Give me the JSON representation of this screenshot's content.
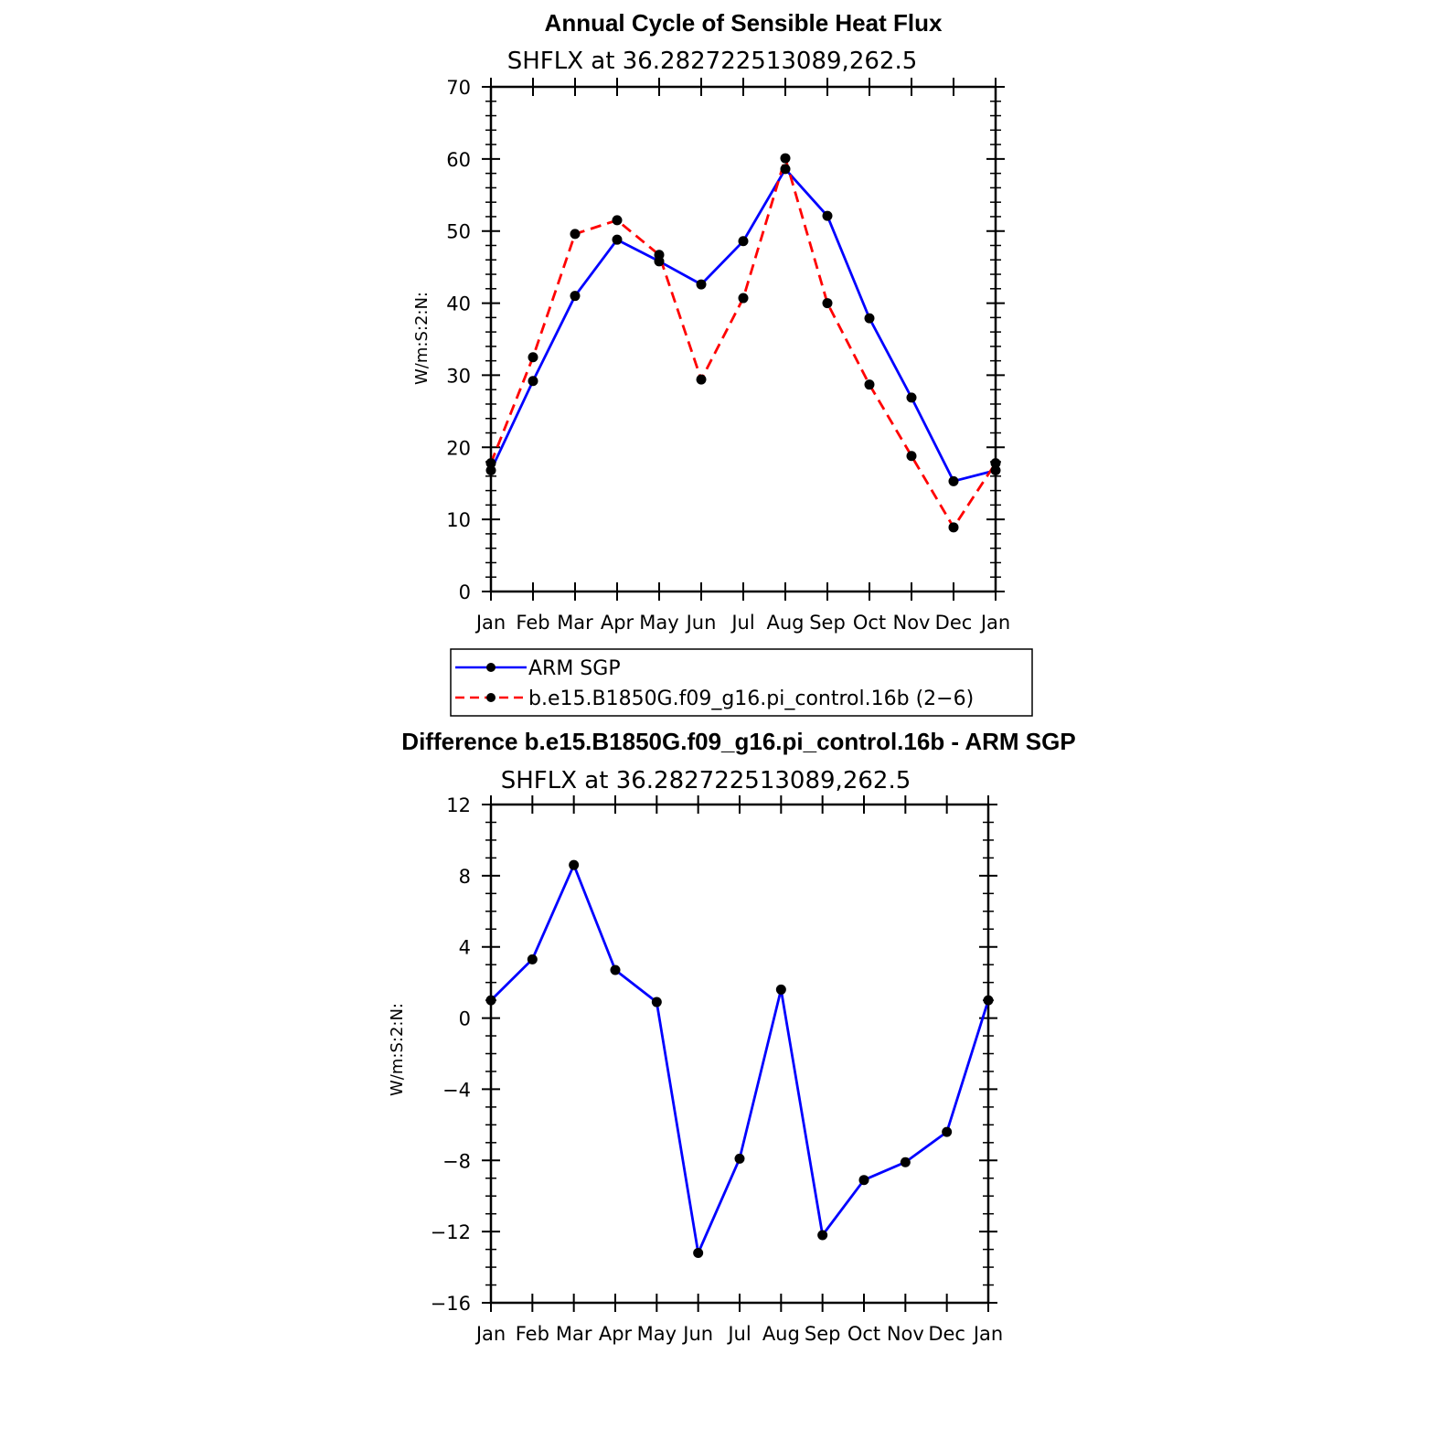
{
  "chart_data": [
    {
      "type": "line",
      "title": "Annual Cycle of Sensible Heat Flux",
      "subtitle": "SHFLX at 36.282722513089,262.5",
      "xlabel": "",
      "ylabel": "W/m:S:2:N:",
      "categories": [
        "Jan",
        "Feb",
        "Mar",
        "Apr",
        "May",
        "Jun",
        "Jul",
        "Aug",
        "Sep",
        "Oct",
        "Nov",
        "Dec",
        "Jan"
      ],
      "ylim": [
        0,
        70
      ],
      "yticks": [
        0,
        10,
        20,
        30,
        40,
        50,
        60,
        70
      ],
      "series": [
        {
          "name": "ARM SGP",
          "color": "#0000ff",
          "style": "solid",
          "values": [
            16.8,
            29.2,
            41.0,
            48.8,
            45.8,
            42.6,
            48.6,
            58.6,
            52.1,
            37.9,
            26.9,
            15.3,
            16.8
          ]
        },
        {
          "name": "b.e15.B1850G.f09_g16.pi_control.16b (2-6)",
          "color": "#ff0000",
          "style": "dashed",
          "values": [
            17.8,
            32.5,
            49.6,
            51.5,
            46.7,
            29.4,
            40.7,
            60.1,
            40.0,
            28.7,
            18.8,
            8.9,
            17.8
          ]
        }
      ],
      "legend": {
        "position": "below",
        "entries": [
          "ARM SGP",
          "b.e15.B1850G.f09_g16.pi_control.16b (2−6)"
        ]
      }
    },
    {
      "type": "line",
      "title": "Difference b.e15.B1850G.f09_g16.pi_control.16b - ARM SGP",
      "subtitle": "SHFLX at 36.282722513089,262.5",
      "xlabel": "",
      "ylabel": "W/m:S:2:N:",
      "categories": [
        "Jan",
        "Feb",
        "Mar",
        "Apr",
        "May",
        "Jun",
        "Jul",
        "Aug",
        "Sep",
        "Oct",
        "Nov",
        "Dec",
        "Jan"
      ],
      "ylim": [
        -16,
        12
      ],
      "yticks": [
        -16,
        -12,
        -8,
        -4,
        0,
        4,
        8,
        12
      ],
      "ytick_labels": [
        "−16",
        "−12",
        "−8",
        "−4",
        "0",
        "4",
        "8",
        "12"
      ],
      "series": [
        {
          "name": "Difference",
          "color": "#0000ff",
          "style": "solid",
          "values": [
            1.0,
            3.3,
            8.6,
            2.7,
            0.9,
            -13.2,
            -7.9,
            1.6,
            -12.2,
            -9.1,
            -8.1,
            -6.4,
            1.0
          ]
        }
      ]
    }
  ]
}
